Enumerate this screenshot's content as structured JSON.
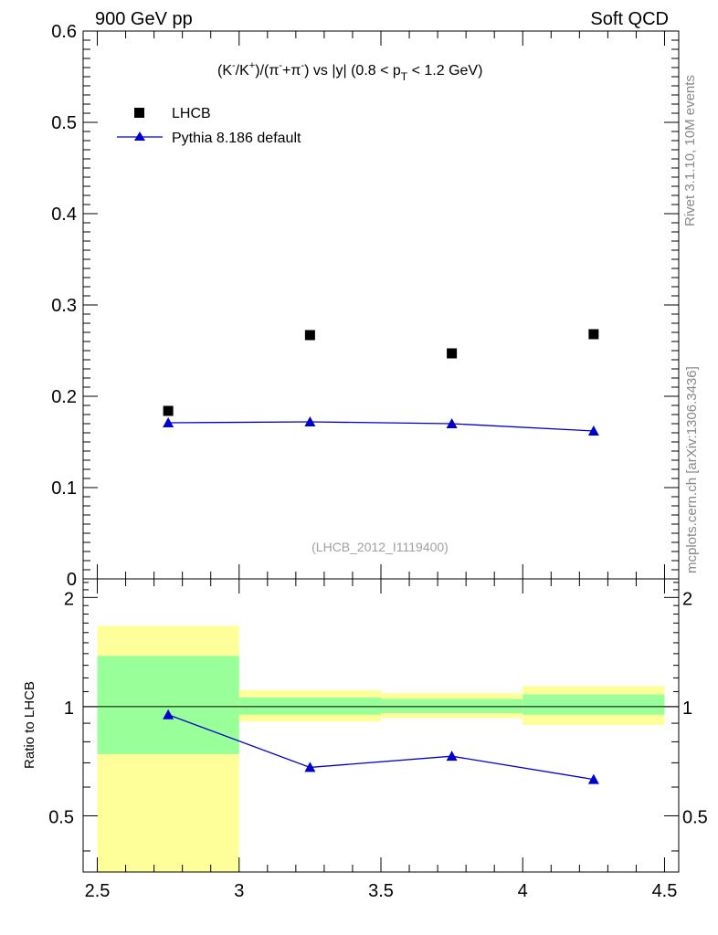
{
  "header": {
    "left": "900 GeV pp",
    "right": "Soft QCD"
  },
  "side_text": {
    "rivet": "Rivet 3.1.10,  10M events",
    "mcplots": "mcplots.cern.ch [arXiv:1306.3436]"
  },
  "colors": {
    "data": "#000000",
    "mc": "#0000cc",
    "band_inner": "#99ff99",
    "band_outer": "#ffff99",
    "side_text": "#888888",
    "watermark": "#a0a0a0"
  },
  "chart_data": [
    {
      "type": "scatter",
      "title": "(K⁻/K⁺)/(π⁻+π⁻) vs |y| (0.8 < p_T < 1.2 GeV)",
      "watermark": "(LHCB_2012_I1119400)",
      "xlim": [
        2.45,
        4.55
      ],
      "ylim": [
        0,
        0.6
      ],
      "y_ticks": [
        0,
        0.1,
        0.2,
        0.3,
        0.4,
        0.5,
        0.6
      ],
      "y_tick_labels": [
        "0",
        "0.1",
        "0.2",
        "0.3",
        "0.4",
        "0.5",
        "0.6"
      ],
      "legend": {
        "placement": "top-left",
        "entries": [
          "LHCB",
          "Pythia 8.186 default"
        ]
      },
      "series": [
        {
          "name": "LHCB",
          "marker": "square",
          "x": [
            2.75,
            3.25,
            3.75,
            4.25
          ],
          "y": [
            0.184,
            0.267,
            0.247,
            0.268
          ]
        },
        {
          "name": "Pythia 8.186 default",
          "marker": "triangle",
          "x": [
            2.75,
            3.25,
            3.75,
            4.25
          ],
          "y": [
            0.171,
            0.172,
            0.17,
            0.162
          ]
        }
      ]
    },
    {
      "type": "line",
      "ylabel": "Ratio to LHCB",
      "xlim": [
        2.45,
        4.55
      ],
      "ylim": [
        0.35,
        2.25
      ],
      "log_y": true,
      "x_ticks": [
        2.5,
        3,
        3.5,
        4,
        4.5
      ],
      "x_tick_labels": [
        "2.5",
        "3",
        "3.5",
        "4",
        "4.5"
      ],
      "y_ticks": [
        0.5,
        1,
        2
      ],
      "y_tick_labels": [
        "0.5",
        "1",
        "2"
      ],
      "reference_line": 1,
      "bins": [
        {
          "x_low": 2.5,
          "x_high": 3.0,
          "inner": [
            0.74,
            1.38
          ],
          "outer": [
            0.35,
            1.67
          ]
        },
        {
          "x_low": 3.0,
          "x_high": 3.5,
          "inner": [
            0.95,
            1.06
          ],
          "outer": [
            0.91,
            1.11
          ]
        },
        {
          "x_low": 3.5,
          "x_high": 4.0,
          "inner": [
            0.96,
            1.05
          ],
          "outer": [
            0.93,
            1.09
          ]
        },
        {
          "x_low": 4.0,
          "x_high": 4.5,
          "inner": [
            0.95,
            1.08
          ],
          "outer": [
            0.89,
            1.14
          ]
        }
      ],
      "series": [
        {
          "name": "Pythia 8.186 default",
          "x": [
            2.75,
            3.25,
            3.75,
            4.25
          ],
          "y": [
            0.95,
            0.68,
            0.73,
            0.63
          ]
        }
      ]
    }
  ]
}
